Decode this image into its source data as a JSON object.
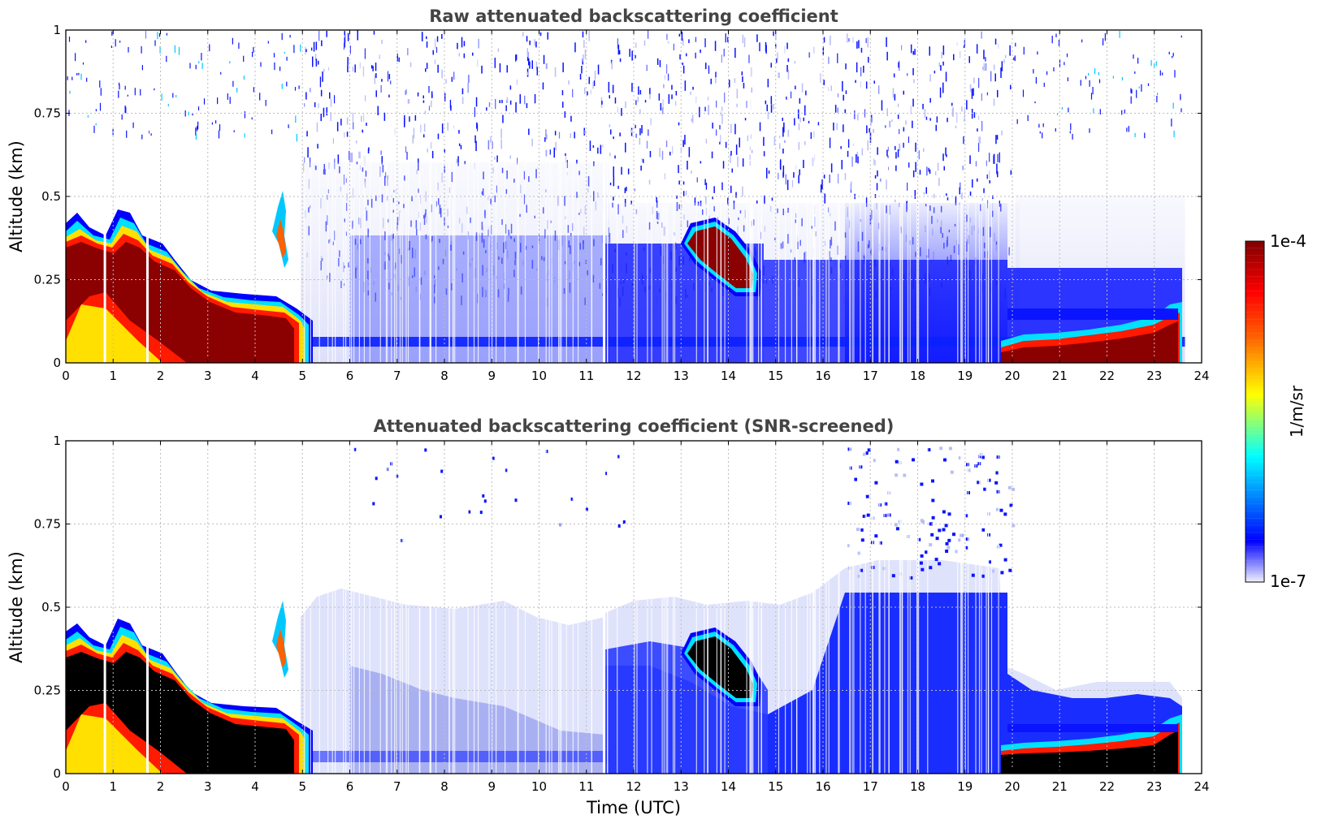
{
  "chart_data": [
    {
      "type": "heatmap",
      "title": "Raw attenuated backscattering coefficient",
      "xlabel": "",
      "ylabel": "Altitude (km)",
      "xlim": [
        0,
        24
      ],
      "ylim": [
        0,
        1
      ],
      "x_ticks": [
        "0",
        "1",
        "2",
        "3",
        "4",
        "5",
        "6",
        "7",
        "8",
        "9",
        "10",
        "11",
        "12",
        "13",
        "14",
        "15",
        "16",
        "17",
        "18",
        "19",
        "20",
        "21",
        "22",
        "23",
        "24"
      ],
      "y_ticks": [
        "0",
        "0.25",
        "0.5",
        "0.75",
        "1"
      ],
      "grid": true,
      "features": [
        {
          "name": "boundary-layer",
          "x": [
            0,
            0.5,
            1,
            1.5,
            2,
            2.5,
            3,
            3.5,
            4,
            4.5,
            5,
            6,
            7,
            8,
            9,
            10,
            11,
            11.4
          ],
          "y": [
            0.24,
            0.26,
            0.28,
            0.22,
            0.15,
            0.12,
            0.09,
            0.09,
            0.09,
            0.08,
            0.07,
            0.06,
            0.05,
            0.05,
            0.05,
            0.05,
            0.05,
            0.05
          ],
          "level": "max"
        },
        {
          "name": "cloud-13-15h",
          "x": [
            13.3,
            13.6,
            14,
            14.4,
            14.8
          ],
          "y": [
            0.34,
            0.36,
            0.33,
            0.29,
            0.25
          ],
          "level": "max"
        },
        {
          "name": "layer-20-23.6h",
          "x": [
            20,
            20.5,
            21,
            21.5,
            22,
            22.5,
            23,
            23.5
          ],
          "y": [
            0.05,
            0.06,
            0.07,
            0.06,
            0.07,
            0.08,
            0.08,
            0.09
          ],
          "level": "max"
        },
        {
          "name": "noise-band",
          "x": [
            5,
            20
          ],
          "y": [
            0.5,
            1.0
          ],
          "level": "low"
        }
      ]
    },
    {
      "type": "heatmap",
      "title": "Attenuated backscattering coefficient (SNR-screened)",
      "xlabel": "Time (UTC)",
      "ylabel": "Altitude (km)",
      "xlim": [
        0,
        24
      ],
      "ylim": [
        0,
        1
      ],
      "x_ticks": [
        "0",
        "1",
        "2",
        "3",
        "4",
        "5",
        "6",
        "7",
        "8",
        "9",
        "10",
        "11",
        "12",
        "13",
        "14",
        "15",
        "16",
        "17",
        "18",
        "19",
        "20",
        "21",
        "22",
        "23",
        "24"
      ],
      "y_ticks": [
        "0",
        "0.25",
        "0.5",
        "0.75",
        "1"
      ],
      "grid": true,
      "features": [
        {
          "name": "boundary-layer",
          "x": [
            0,
            0.5,
            1,
            1.5,
            2,
            2.5,
            3,
            3.5,
            4,
            4.5,
            5
          ],
          "y": [
            0.24,
            0.26,
            0.28,
            0.22,
            0.15,
            0.12,
            0.09,
            0.09,
            0.09,
            0.08,
            0.07
          ],
          "level": "saturated"
        },
        {
          "name": "cloud-13-15h",
          "x": [
            13.3,
            13.6,
            14,
            14.4,
            14.8
          ],
          "y": [
            0.34,
            0.36,
            0.33,
            0.29,
            0.25
          ],
          "level": "saturated"
        },
        {
          "name": "layer-20-23.6h",
          "x": [
            20,
            21,
            22,
            23,
            23.6
          ],
          "y": [
            0.04,
            0.05,
            0.05,
            0.06,
            0.08
          ],
          "level": "saturated"
        },
        {
          "name": "aerosol-17-20h",
          "x": [
            17,
            20
          ],
          "y": [
            0.0,
            0.55
          ],
          "level": "mid"
        }
      ]
    }
  ],
  "colorbar": {
    "unit_label": "1/m/sr",
    "max_label": "1e-4",
    "min_label": "1e-7",
    "min_value": 1e-07,
    "max_value": 0.0001,
    "colormap": "jet"
  },
  "colors": {
    "jet_dark_red": "#7f0000",
    "jet_red": "#ff0000",
    "jet_yellow": "#ffff00",
    "jet_cyan": "#00ffff",
    "jet_blue": "#0000ff",
    "pale_blue": "#e6e8fb",
    "saturated": "#000000",
    "grid": "#bdbdbd",
    "title_gray": "#444444"
  }
}
